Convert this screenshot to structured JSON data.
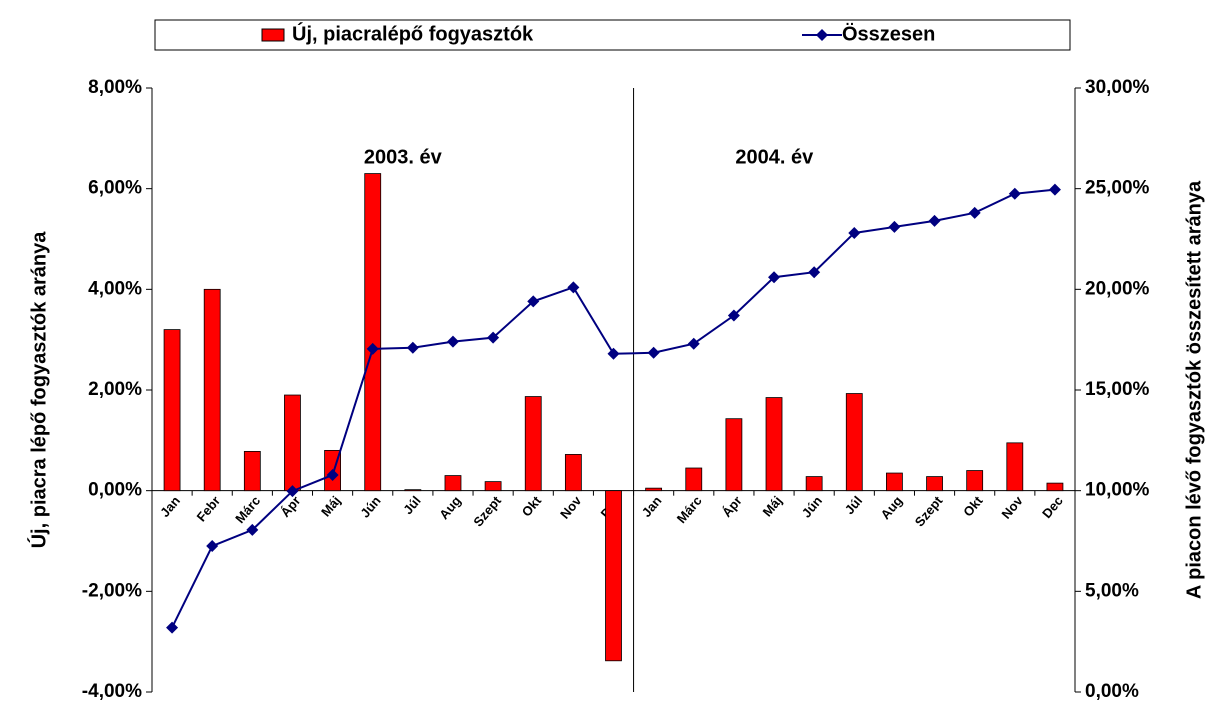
{
  "chart_data": {
    "type": "bar-line",
    "legend": "top",
    "annotations": [
      "2003. év",
      "2004. év"
    ],
    "y_label": "Új, piacra lépő fogyasztók aránya",
    "y2_label": "A piacon lévő fogyasztók összesített aránya",
    "categories": [
      "Jan",
      "Febr",
      "Márc",
      "Ápr",
      "Máj",
      "Jún",
      "Júl",
      "Aug",
      "Szept",
      "Okt",
      "Nov",
      "Dec",
      "Jan",
      "Márc",
      "Ápr",
      "Máj",
      "Jún",
      "Júl",
      "Aug",
      "Szept",
      "Okt",
      "Nov",
      "Dec"
    ],
    "series": [
      {
        "name": "Új, piacralépő fogyasztók",
        "color": "#ff0000",
        "type": "bar",
        "axis": "y",
        "values": [
          3.2,
          4.0,
          0.78,
          1.9,
          0.8,
          6.3,
          0.02,
          0.3,
          0.18,
          1.87,
          0.72,
          -3.38,
          0.05,
          0.45,
          1.43,
          1.85,
          0.28,
          1.93,
          0.35,
          0.28,
          0.4,
          0.95,
          0.15
        ]
      },
      {
        "name": "Összesen",
        "color": "#000080",
        "type": "line",
        "axis": "y2",
        "values": [
          3.2,
          7.25,
          8.05,
          9.98,
          10.78,
          17.04,
          17.1,
          17.4,
          17.6,
          19.4,
          20.1,
          16.8,
          16.85,
          17.3,
          18.7,
          20.6,
          20.85,
          22.8,
          23.1,
          23.4,
          23.8,
          24.75,
          24.95
        ]
      }
    ],
    "ylim": [
      -4,
      8
    ],
    "yticks": [
      {
        "value": -4,
        "label": "-4,00%"
      },
      {
        "value": -2,
        "label": "-2,00%"
      },
      {
        "value": 0,
        "label": "0,00%"
      },
      {
        "value": 2,
        "label": "2,00%"
      },
      {
        "value": 4,
        "label": "4,00%"
      },
      {
        "value": 6,
        "label": "6,00%"
      },
      {
        "value": 8,
        "label": "8,00%"
      }
    ],
    "y2lim": [
      0,
      30
    ],
    "y2ticks": [
      {
        "value": 0,
        "label": "0,00%"
      },
      {
        "value": 5,
        "label": "5,00%"
      },
      {
        "value": 10,
        "label": "10,00%"
      },
      {
        "value": 15,
        "label": "15,00%"
      },
      {
        "value": 20,
        "label": "20,00%"
      },
      {
        "value": 25,
        "label": "25,00%"
      },
      {
        "value": 30,
        "label": "30,00%"
      }
    ]
  }
}
